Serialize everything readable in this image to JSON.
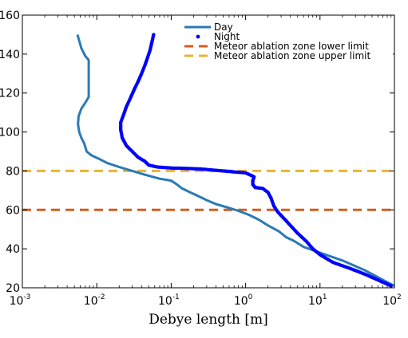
{
  "chart_data": {
    "type": "line",
    "xlabel": "Debye length [m]",
    "ylabel": "",
    "xscale": "log",
    "xlim": [
      0.001,
      100
    ],
    "ylim": [
      20,
      160
    ],
    "x_tick_base": "10",
    "x_tick_exponents": [
      "-3",
      "-2",
      "-1",
      "0",
      "1",
      "2"
    ],
    "y_ticks": [
      20,
      40,
      60,
      80,
      100,
      120,
      140,
      160
    ],
    "grid": false,
    "legend_position": "top-right",
    "series": [
      {
        "name": "Day",
        "style": "line",
        "color": "#2a7ab5",
        "points": [
          [
            0.0055,
            150
          ],
          [
            0.0062,
            143
          ],
          [
            0.007,
            139
          ],
          [
            0.0078,
            137
          ],
          [
            0.0078,
            130
          ],
          [
            0.0078,
            123
          ],
          [
            0.0078,
            118
          ],
          [
            0.007,
            115
          ],
          [
            0.0062,
            112
          ],
          [
            0.0057,
            108
          ],
          [
            0.0056,
            104
          ],
          [
            0.0058,
            100
          ],
          [
            0.0062,
            97
          ],
          [
            0.0068,
            94
          ],
          [
            0.0073,
            90
          ],
          [
            0.0085,
            88
          ],
          [
            0.011,
            86
          ],
          [
            0.014,
            84
          ],
          [
            0.02,
            82
          ],
          [
            0.03,
            80
          ],
          [
            0.045,
            78
          ],
          [
            0.07,
            76
          ],
          [
            0.1,
            75
          ],
          [
            0.12,
            73
          ],
          [
            0.14,
            71
          ],
          [
            0.18,
            69
          ],
          [
            0.22,
            67.5
          ],
          [
            0.3,
            65
          ],
          [
            0.4,
            63
          ],
          [
            0.6,
            61
          ],
          [
            0.8,
            59.5
          ],
          [
            1.1,
            57.5
          ],
          [
            1.5,
            55
          ],
          [
            2.0,
            52
          ],
          [
            2.8,
            49
          ],
          [
            3.5,
            46
          ],
          [
            4.5,
            44
          ],
          [
            6.0,
            41
          ],
          [
            10.0,
            38
          ],
          [
            20.0,
            34
          ],
          [
            40.0,
            29
          ],
          [
            70.0,
            24
          ],
          [
            100.0,
            21
          ]
        ]
      },
      {
        "name": "Night",
        "style": "markers",
        "color": "#0000ff",
        "points": [
          [
            0.058,
            150
          ],
          [
            0.055,
            146
          ],
          [
            0.052,
            142
          ],
          [
            0.048,
            138
          ],
          [
            0.044,
            134
          ],
          [
            0.04,
            130
          ],
          [
            0.036,
            126
          ],
          [
            0.032,
            122
          ],
          [
            0.028,
            117
          ],
          [
            0.025,
            113
          ],
          [
            0.023,
            109
          ],
          [
            0.021,
            105
          ],
          [
            0.021,
            101
          ],
          [
            0.022,
            97
          ],
          [
            0.025,
            93
          ],
          [
            0.03,
            90
          ],
          [
            0.036,
            87
          ],
          [
            0.044,
            85
          ],
          [
            0.05,
            83
          ],
          [
            0.065,
            82
          ],
          [
            0.1,
            81.5
          ],
          [
            0.16,
            81.3
          ],
          [
            0.25,
            81
          ],
          [
            0.35,
            80.5
          ],
          [
            0.5,
            80
          ],
          [
            0.7,
            79.5
          ],
          [
            1.0,
            79
          ],
          [
            1.3,
            77
          ],
          [
            1.25,
            75
          ],
          [
            1.25,
            73
          ],
          [
            1.35,
            71.5
          ],
          [
            1.7,
            71
          ],
          [
            2.0,
            69
          ],
          [
            2.2,
            66
          ],
          [
            2.4,
            62
          ],
          [
            2.7,
            59
          ],
          [
            3.2,
            56
          ],
          [
            4.0,
            52
          ],
          [
            5.0,
            48
          ],
          [
            6.5,
            44
          ],
          [
            8.0,
            40
          ],
          [
            10.0,
            37
          ],
          [
            15.0,
            33
          ],
          [
            25.0,
            30
          ],
          [
            40.0,
            27
          ],
          [
            60.0,
            24
          ],
          [
            90.0,
            21
          ]
        ]
      },
      {
        "name": "Meteor ablation zone lower limit",
        "style": "dashed",
        "color": "#d45e1f",
        "y": 60
      },
      {
        "name": "Meteor ablation zone upper limit",
        "style": "dashed",
        "color": "#e9b430",
        "y": 80
      }
    ]
  }
}
